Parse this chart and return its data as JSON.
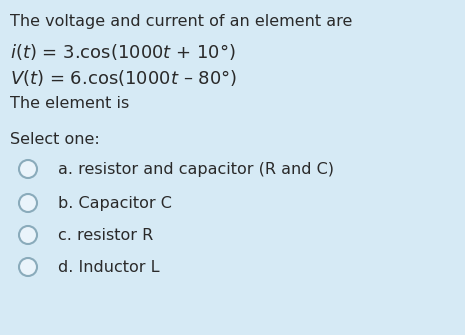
{
  "background_color": "#d6eaf5",
  "title_line": "The voltage and current of an element are",
  "question_line": "The element is",
  "select_line": "Select one:",
  "options": [
    "a. resistor and capacitor (R and C)",
    "b. Capacitor C",
    "c. resistor R",
    "d. Inductor L"
  ],
  "text_color": "#2a2a2a",
  "circle_edge_color": "#8aabbb",
  "circle_face_color": "#eaf4fb",
  "title_fontsize": 11.5,
  "eq_fontsize": 13.0,
  "option_fontsize": 11.5,
  "select_fontsize": 11.5,
  "eq1_plain": "i(t) = 3.cos(1000t + 10°)",
  "eq2_plain": "V(t) = 6.cos(1000t – 80°)"
}
